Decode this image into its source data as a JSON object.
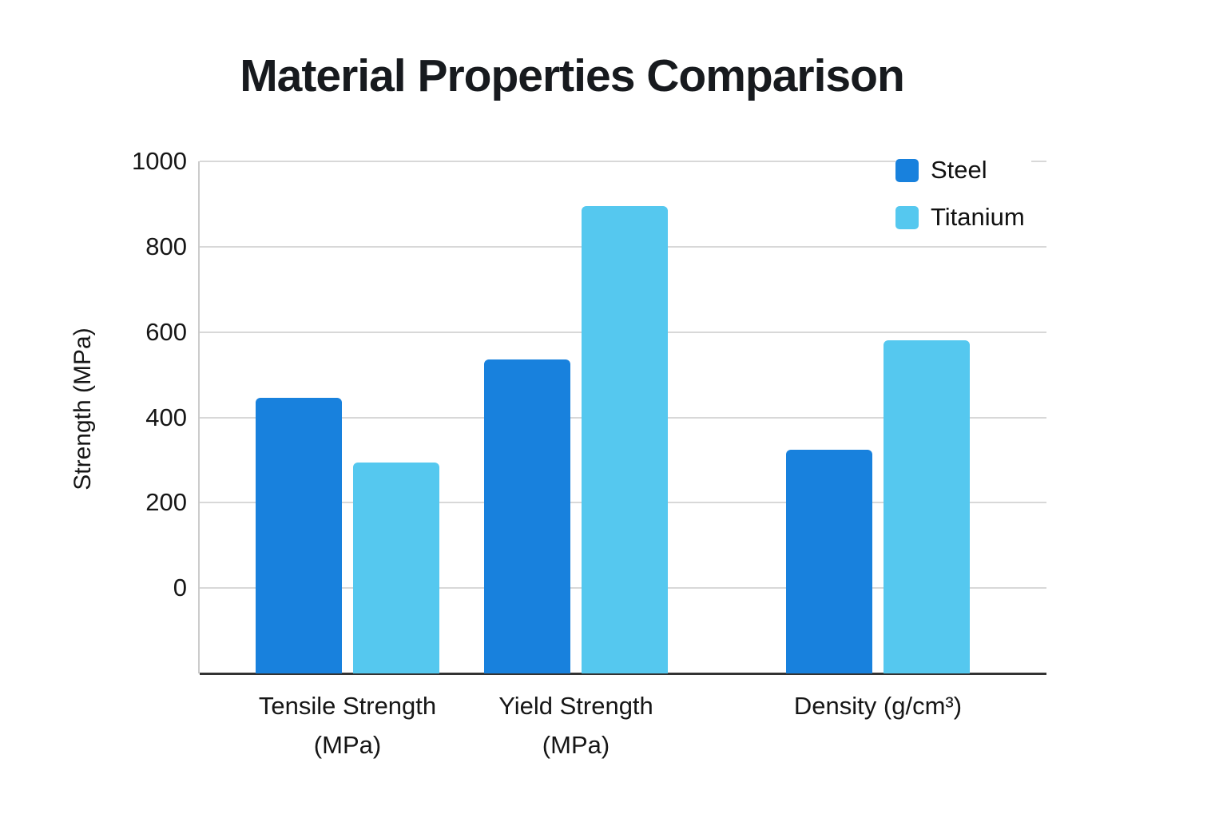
{
  "chart_data": {
    "type": "bar",
    "title": "Material Properties Comparison",
    "ylabel": "Strength (MPa)",
    "xlabel": "",
    "categories": [
      "Tensile Strength (MPa)",
      "Yield Strength (MPa)",
      "Density (g/cm³)"
    ],
    "category_lines": [
      [
        "Tensile Strength",
        "(MPa)"
      ],
      [
        "Yield Strength",
        "(MPa)"
      ],
      [
        "Density (g/cm³)"
      ]
    ],
    "series": [
      {
        "name": "Steel",
        "color": "#1881dd",
        "values": [
          445,
          535,
          325
        ]
      },
      {
        "name": "Titanium",
        "color": "#55c8ef",
        "values": [
          295,
          895,
          580
        ]
      }
    ],
    "yticks": [
      0,
      200,
      400,
      600,
      800,
      1000
    ],
    "ylim": [
      -200,
      1000
    ],
    "bars_drawn_from": -200,
    "grid": "horizontal-only",
    "legend_position": "top-right"
  }
}
